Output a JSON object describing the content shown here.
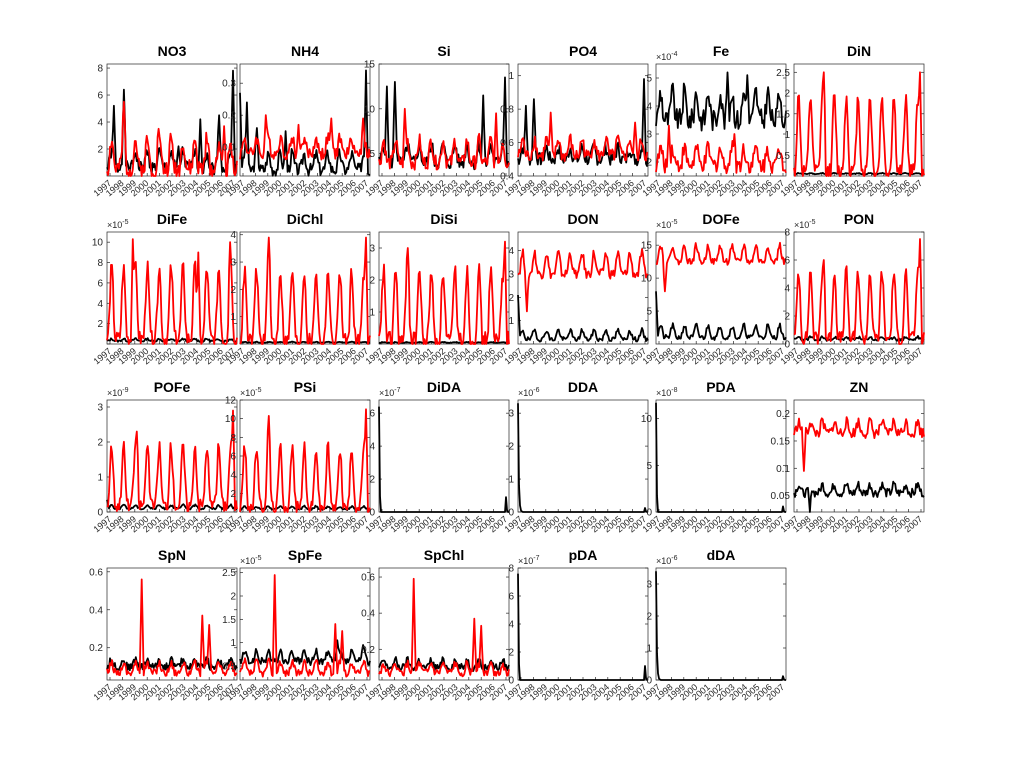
{
  "colors": {
    "black_series": "#000000",
    "red_series": "#ff0000",
    "axis": "#262626"
  },
  "x_tick_labels": [
    "1997",
    "1998",
    "1999",
    "2000",
    "2001",
    "2002",
    "2003",
    "2004",
    "2005",
    "2006",
    "2007"
  ],
  "chart_data": [
    {
      "type": "line",
      "title": "NO3",
      "exponent": "",
      "ylim": [
        0,
        8.3
      ],
      "yticks": [
        2,
        4,
        6,
        8
      ],
      "ytick_labels": [
        "2",
        "4",
        "6",
        "8"
      ],
      "series": [
        {
          "color": "black",
          "base": 0.6,
          "amp": 1.2,
          "peaks": [
            [
              0.05,
              5.2
            ],
            [
              0.13,
              6.4
            ],
            [
              0.55,
              2.2
            ],
            [
              0.72,
              4.2
            ],
            [
              0.86,
              4.5
            ],
            [
              0.97,
              7.8
            ]
          ],
          "noise": 0.5,
          "seed": 1
        },
        {
          "color": "red",
          "base": 0.5,
          "amp": 2.2,
          "peaks": [
            [
              0.13,
              5.5
            ],
            [
              0.4,
              3.5
            ],
            [
              0.9,
              3.7
            ]
          ],
          "noise": 0.7,
          "seed": 2
        }
      ]
    },
    {
      "type": "line",
      "title": "NH4",
      "exponent": "",
      "ylim": [
        0.01,
        0.36
      ],
      "yticks": [
        0.1,
        0.2,
        0.3
      ],
      "ytick_labels": [
        "0.1",
        "0.2",
        "0.3"
      ],
      "series": [
        {
          "color": "black",
          "base": 0.03,
          "amp": 0.05,
          "peaks": [
            [
              0.0,
              0.27
            ],
            [
              0.05,
              0.24
            ],
            [
              0.13,
              0.16
            ],
            [
              0.35,
              0.15
            ],
            [
              0.97,
              0.34
            ]
          ],
          "noise": 0.02,
          "seed": 3
        },
        {
          "color": "red",
          "base": 0.08,
          "amp": 0.05,
          "peaks": [
            [
              0.2,
              0.2
            ],
            [
              0.45,
              0.17
            ],
            [
              0.7,
              0.19
            ],
            [
              0.95,
              0.19
            ]
          ],
          "noise": 0.02,
          "seed": 4
        }
      ]
    },
    {
      "type": "line",
      "title": "Si",
      "exponent": "",
      "ylim": [
        2.5,
        15
      ],
      "yticks": [
        5,
        10,
        15
      ],
      "ytick_labels": [
        "5",
        "10",
        "15"
      ],
      "series": [
        {
          "color": "black",
          "base": 4.0,
          "amp": 2.0,
          "peaks": [
            [
              0.06,
              12.5
            ],
            [
              0.12,
              13.0
            ],
            [
              0.8,
              11.5
            ],
            [
              0.97,
              13.5
            ]
          ],
          "noise": 0.8,
          "seed": 5
        },
        {
          "color": "red",
          "base": 4.0,
          "amp": 2.5,
          "peaks": [
            [
              0.2,
              10.0
            ],
            [
              0.9,
              9.5
            ]
          ],
          "noise": 0.8,
          "seed": 6
        }
      ]
    },
    {
      "type": "line",
      "title": "PO4",
      "exponent": "",
      "ylim": [
        0.4,
        1.07
      ],
      "yticks": [
        0.4,
        0.6,
        0.8,
        1.0
      ],
      "ytick_labels": [
        "0.4",
        "0.6",
        "0.8",
        "1"
      ],
      "series": [
        {
          "color": "black",
          "base": 0.5,
          "amp": 0.07,
          "peaks": [
            [
              0.06,
              0.82
            ],
            [
              0.12,
              0.86
            ],
            [
              0.97,
              0.98
            ]
          ],
          "noise": 0.04,
          "seed": 7
        },
        {
          "color": "red",
          "base": 0.52,
          "amp": 0.1,
          "peaks": [
            [
              0.25,
              0.78
            ],
            [
              0.9,
              0.72
            ]
          ],
          "noise": 0.04,
          "seed": 8
        }
      ]
    },
    {
      "type": "line",
      "title": "Fe",
      "exponent": "-4",
      "ylim": [
        1.5,
        5.5
      ],
      "yticks": [
        2,
        3,
        4,
        5
      ],
      "ytick_labels": [
        "2",
        "3",
        "4",
        "5"
      ],
      "series": [
        {
          "color": "black",
          "base": 3.5,
          "amp": 1.0,
          "peaks": [
            [
              0.55,
              5.2
            ],
            [
              0.7,
              5.1
            ]
          ],
          "noise": 0.4,
          "seed": 9
        },
        {
          "color": "red",
          "base": 1.9,
          "amp": 0.6,
          "peaks": [
            [
              0.1,
              3.3
            ],
            [
              0.6,
              3.0
            ]
          ],
          "noise": 0.3,
          "seed": 10
        }
      ]
    },
    {
      "type": "line",
      "title": "DiN",
      "exponent": "",
      "ylim": [
        0,
        2.7
      ],
      "yticks": [
        0.5,
        1,
        1.5,
        2,
        2.5
      ],
      "ytick_labels": [
        "0.5",
        "1",
        "1.5",
        "2",
        "2.5"
      ],
      "series": [
        {
          "color": "black",
          "base": 0.05,
          "amp": 0.02,
          "peaks": [],
          "noise": 0.01,
          "seed": 11
        },
        {
          "color": "red",
          "base": 0.1,
          "amp": 1.8,
          "peaks": [
            [
              0.23,
              2.5
            ],
            [
              0.97,
              2.5
            ]
          ],
          "noise": 0.2,
          "seed": 12
        }
      ]
    },
    {
      "type": "line",
      "title": "DiFe",
      "exponent": "-5",
      "ylim": [
        0,
        11
      ],
      "yticks": [
        0,
        2,
        4,
        6,
        8,
        10
      ],
      "ytick_labels": [
        "",
        "2",
        "4",
        "6",
        "8",
        "10"
      ],
      "series": [
        {
          "color": "black",
          "base": 0.3,
          "amp": 0.2,
          "peaks": [],
          "noise": 0.1,
          "seed": 13
        },
        {
          "color": "red",
          "base": 0.5,
          "amp": 7.0,
          "peaks": [
            [
              0.2,
              10.3
            ],
            [
              0.7,
              9.0
            ],
            [
              0.95,
              10.0
            ]
          ],
          "noise": 0.8,
          "seed": 14
        }
      ]
    },
    {
      "type": "line",
      "title": "DiChl",
      "exponent": "",
      "ylim": [
        0,
        4.1
      ],
      "yticks": [
        0,
        1,
        2,
        3,
        4
      ],
      "ytick_labels": [
        "",
        "1",
        "2",
        "3",
        "4"
      ],
      "series": [
        {
          "color": "black",
          "base": 0.05,
          "amp": 0.03,
          "peaks": [],
          "noise": 0.01,
          "seed": 15
        },
        {
          "color": "red",
          "base": 0.1,
          "amp": 2.6,
          "peaks": [
            [
              0.22,
              3.9
            ],
            [
              0.97,
              3.9
            ]
          ],
          "noise": 0.3,
          "seed": 16
        }
      ]
    },
    {
      "type": "line",
      "title": "DiSi",
      "exponent": "",
      "ylim": [
        0,
        3.5
      ],
      "yticks": [
        0,
        1,
        2,
        3
      ],
      "ytick_labels": [
        "",
        "1",
        "2",
        "3"
      ],
      "series": [
        {
          "color": "black",
          "base": 0.04,
          "amp": 0.02,
          "peaks": [],
          "noise": 0.01,
          "seed": 17
        },
        {
          "color": "red",
          "base": 0.1,
          "amp": 2.2,
          "peaks": [
            [
              0.22,
              3.0
            ],
            [
              0.97,
              3.2
            ]
          ],
          "noise": 0.3,
          "seed": 18
        }
      ]
    },
    {
      "type": "line",
      "title": "DON",
      "exponent": "",
      "ylim": [
        0,
        4.8
      ],
      "yticks": [
        1,
        2,
        3,
        4
      ],
      "ytick_labels": [
        "1",
        "2",
        "3",
        "4"
      ],
      "series": [
        {
          "color": "black",
          "base": 0.2,
          "amp": 0.4,
          "peaks": [
            [
              0.0,
              2.1
            ]
          ],
          "noise": 0.1,
          "seed": 19
        },
        {
          "color": "red",
          "base": 3.0,
          "amp": 0.9,
          "peaks": [
            [
              0.07,
              1.4
            ]
          ],
          "noise": 0.2,
          "seed": 20
        }
      ]
    },
    {
      "type": "line",
      "title": "DOFe",
      "exponent": "-5",
      "ylim": [
        0,
        17
      ],
      "yticks": [
        5,
        10,
        15
      ],
      "ytick_labels": [
        "5",
        "10",
        "15"
      ],
      "series": [
        {
          "color": "black",
          "base": 1.0,
          "amp": 1.8,
          "peaks": [
            [
              0.0,
              8.0
            ]
          ],
          "noise": 0.4,
          "seed": 21
        },
        {
          "color": "red",
          "base": 12.5,
          "amp": 2.5,
          "peaks": [
            [
              0.07,
              8.0
            ]
          ],
          "noise": 0.5,
          "seed": 22
        }
      ]
    },
    {
      "type": "line",
      "title": "PON",
      "exponent": "-5",
      "ylim": [
        0,
        8
      ],
      "yticks": [
        0,
        2,
        4,
        6,
        8
      ],
      "ytick_labels": [
        "0",
        "2",
        "4",
        "6",
        "8"
      ],
      "series": [
        {
          "color": "black",
          "base": 0.3,
          "amp": 0.2,
          "peaks": [],
          "noise": 0.1,
          "seed": 23
        },
        {
          "color": "red",
          "base": 0.4,
          "amp": 4.8,
          "peaks": [
            [
              0.23,
              6.0
            ],
            [
              0.97,
              7.5
            ]
          ],
          "noise": 0.5,
          "seed": 24
        }
      ]
    },
    {
      "type": "line",
      "title": "POFe",
      "exponent": "-9",
      "ylim": [
        0,
        3.2
      ],
      "yticks": [
        0,
        1,
        2,
        3
      ],
      "ytick_labels": [
        "0",
        "1",
        "2",
        "3"
      ],
      "series": [
        {
          "color": "black",
          "base": 0.1,
          "amp": 0.1,
          "peaks": [
            [
              0.0,
              0.35
            ]
          ],
          "noise": 0.03,
          "seed": 25
        },
        {
          "color": "red",
          "base": 0.2,
          "amp": 1.7,
          "peaks": [
            [
              0.23,
              2.3
            ],
            [
              0.97,
              2.9
            ]
          ],
          "noise": 0.2,
          "seed": 26
        }
      ]
    },
    {
      "type": "line",
      "title": "PSi",
      "exponent": "-5",
      "ylim": [
        0,
        12
      ],
      "yticks": [
        0,
        2,
        4,
        6,
        8,
        10,
        12
      ],
      "ytick_labels": [
        "",
        "2",
        "4",
        "6",
        "8",
        "10",
        "12"
      ],
      "series": [
        {
          "color": "black",
          "base": 0.3,
          "amp": 0.3,
          "peaks": [],
          "noise": 0.1,
          "seed": 27
        },
        {
          "color": "red",
          "base": 0.5,
          "amp": 6.5,
          "peaks": [
            [
              0.22,
              10.3
            ],
            [
              0.97,
              11.0
            ]
          ],
          "noise": 0.7,
          "seed": 28
        }
      ]
    },
    {
      "type": "line",
      "title": "DiDA",
      "exponent": "-7",
      "ylim": [
        0,
        6.8
      ],
      "yticks": [
        0,
        2,
        4,
        6
      ],
      "ytick_labels": [
        "0",
        "2",
        "4",
        "6"
      ],
      "series": [
        {
          "color": "black",
          "base": 0.0,
          "amp": 0.0,
          "peaks": [
            [
              0.0,
              6.4
            ],
            [
              0.975,
              0.9
            ]
          ],
          "noise": 0.0,
          "spike": true,
          "seed": 29
        }
      ]
    },
    {
      "type": "line",
      "title": "DDA",
      "exponent": "-6",
      "ylim": [
        0,
        3.4
      ],
      "yticks": [
        0,
        1,
        2,
        3
      ],
      "ytick_labels": [
        "0",
        "1",
        "2",
        "3"
      ],
      "series": [
        {
          "color": "black",
          "base": 0.0,
          "amp": 0.0,
          "peaks": [
            [
              0.0,
              3.3
            ],
            [
              0.98,
              0.12
            ]
          ],
          "noise": 0.0,
          "spike": true,
          "decay": true,
          "seed": 30
        }
      ]
    },
    {
      "type": "line",
      "title": "PDA",
      "exponent": "-8",
      "ylim": [
        0,
        12
      ],
      "yticks": [
        0,
        5,
        10
      ],
      "ytick_labels": [
        "0",
        "5",
        "10"
      ],
      "series": [
        {
          "color": "black",
          "base": 0.0,
          "amp": 0.0,
          "peaks": [
            [
              0.0,
              11.7
            ],
            [
              0.98,
              0.6
            ]
          ],
          "noise": 0.0,
          "spike": true,
          "seed": 31
        }
      ]
    },
    {
      "type": "line",
      "title": "ZN",
      "exponent": "",
      "ylim": [
        0.02,
        0.225
      ],
      "yticks": [
        0.05,
        0.1,
        0.15,
        0.2
      ],
      "ytick_labels": [
        "0.05",
        "0.1",
        "0.15",
        "0.2"
      ],
      "series": [
        {
          "color": "black",
          "base": 0.055,
          "amp": 0.015,
          "peaks": [
            [
              0.12,
              0.02
            ]
          ],
          "noise": 0.008,
          "seed": 32
        },
        {
          "color": "red",
          "base": 0.165,
          "amp": 0.02,
          "peaks": [
            [
              0.08,
              0.095
            ]
          ],
          "noise": 0.01,
          "seed": 33
        }
      ]
    },
    {
      "type": "line",
      "title": "SpN",
      "exponent": "",
      "ylim": [
        0.03,
        0.62
      ],
      "yticks": [
        0.2,
        0.4,
        0.6
      ],
      "ytick_labels": [
        "0.2",
        "0.4",
        "0.6"
      ],
      "series": [
        {
          "color": "black",
          "base": 0.1,
          "amp": 0.04,
          "peaks": [],
          "noise": 0.02,
          "seed": 34
        },
        {
          "color": "red",
          "base": 0.07,
          "amp": 0.05,
          "peaks": [
            [
              0.27,
              0.56
            ],
            [
              0.73,
              0.37
            ],
            [
              0.79,
              0.32
            ]
          ],
          "noise": 0.02,
          "seed": 35
        }
      ]
    },
    {
      "type": "line",
      "title": "SpFe",
      "exponent": "-5",
      "ylim": [
        0.2,
        2.6
      ],
      "yticks": [
        0.5,
        1,
        1.5,
        2,
        2.5
      ],
      "ytick_labels": [
        "0.5",
        "1",
        "1.5",
        "2",
        "2.5"
      ],
      "series": [
        {
          "color": "black",
          "base": 0.6,
          "amp": 0.2,
          "peaks": [
            [
              0.75,
              1.05
            ],
            [
              0.95,
              0.95
            ]
          ],
          "noise": 0.08,
          "seed": 36
        },
        {
          "color": "red",
          "base": 0.35,
          "amp": 0.25,
          "peaks": [
            [
              0.27,
              2.45
            ],
            [
              0.73,
              1.4
            ],
            [
              0.79,
              1.25
            ]
          ],
          "noise": 0.08,
          "seed": 37
        }
      ]
    },
    {
      "type": "line",
      "title": "SpChl",
      "exponent": "",
      "ylim": [
        0.03,
        0.65
      ],
      "yticks": [
        0.2,
        0.4,
        0.6
      ],
      "ytick_labels": [
        "0.2",
        "0.4",
        "0.6"
      ],
      "series": [
        {
          "color": "black",
          "base": 0.1,
          "amp": 0.04,
          "peaks": [],
          "noise": 0.02,
          "seed": 38
        },
        {
          "color": "red",
          "base": 0.07,
          "amp": 0.05,
          "peaks": [
            [
              0.27,
              0.59
            ],
            [
              0.73,
              0.37
            ],
            [
              0.79,
              0.33
            ]
          ],
          "noise": 0.02,
          "seed": 39
        }
      ]
    },
    {
      "type": "line",
      "title": "pDA",
      "exponent": "-7",
      "ylim": [
        0,
        8
      ],
      "yticks": [
        0,
        2,
        4,
        6,
        8
      ],
      "ytick_labels": [
        "0",
        "2",
        "4",
        "6",
        "8"
      ],
      "series": [
        {
          "color": "black",
          "base": 0.0,
          "amp": 0.0,
          "peaks": [
            [
              0.0,
              7.6
            ],
            [
              0.975,
              1.0
            ]
          ],
          "noise": 0.0,
          "spike": true,
          "seed": 40
        }
      ]
    },
    {
      "type": "line",
      "title": "dDA",
      "exponent": "-6",
      "ylim": [
        0,
        3.5
      ],
      "yticks": [
        0,
        1,
        2,
        3
      ],
      "ytick_labels": [
        "0",
        "1",
        "2",
        "3"
      ],
      "series": [
        {
          "color": "black",
          "base": 0.0,
          "amp": 0.0,
          "peaks": [
            [
              0.0,
              3.4
            ],
            [
              0.98,
              0.12
            ]
          ],
          "noise": 0.0,
          "spike": true,
          "decay": true,
          "seed": 41
        }
      ]
    }
  ]
}
